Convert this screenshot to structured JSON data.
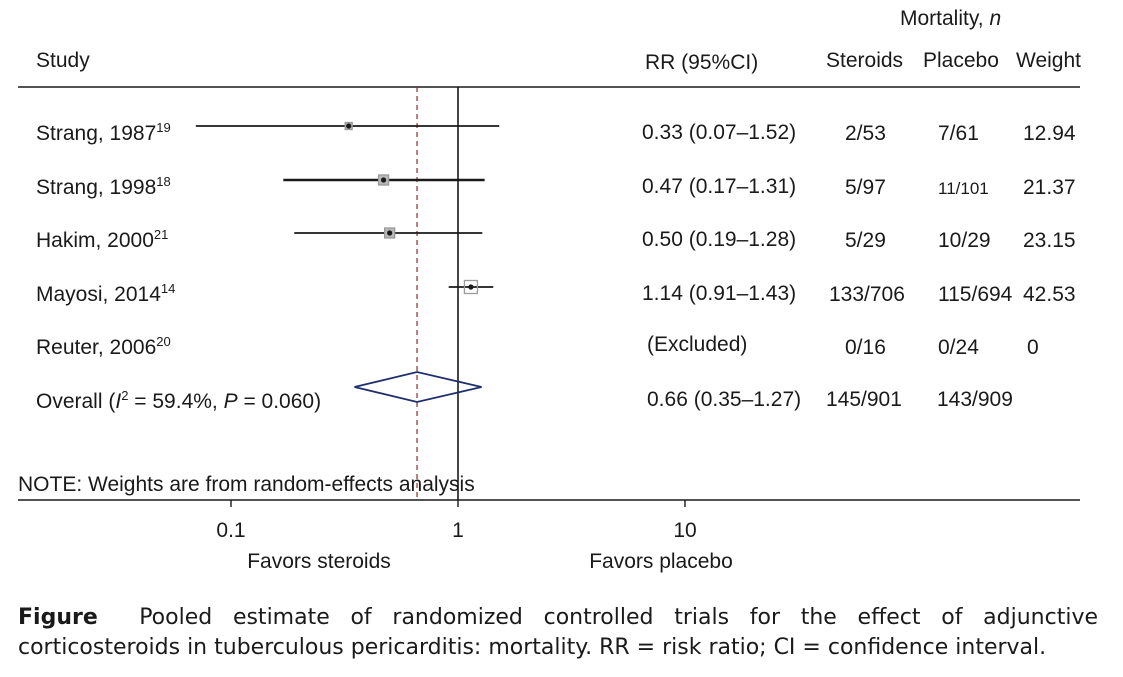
{
  "header": {
    "mortality_label": "Mortality, ",
    "mortality_n": "n",
    "study": "Study",
    "rr": "RR (95%CI)",
    "steroids": "Steroids",
    "placebo": "Placebo",
    "weight": "Weight"
  },
  "note": "NOTE: Weights are from random-effects analysis",
  "caption": {
    "label": "Figure",
    "text": "Pooled estimate of randomized controlled trials for the effect of adjunctive corticosteroids in tuberculous pericarditis: mortality. RR = risk ratio; CI = confidence interval."
  },
  "colors": {
    "line": "#1a1a1a",
    "null_line": "#8b2b2b",
    "diamond": "#1f2f6b",
    "box": "#b8b8b8"
  },
  "chart_data": {
    "type": "forest",
    "scale": "log",
    "xlim": [
      0.03,
      100
    ],
    "xticks": [
      {
        "value": 0.1,
        "label": "0.1"
      },
      {
        "value": 1,
        "label": "1"
      },
      {
        "value": 10,
        "label": "10"
      }
    ],
    "null_value": 1,
    "pooled_reference_line": 0.66,
    "favors_left": "Favors steroids",
    "favors_right": "Favors placebo",
    "studies": [
      {
        "name": "Strang, 1987",
        "ref": "19",
        "rr": 0.33,
        "lo": 0.07,
        "hi": 1.52,
        "rr_text": "0.33 (0.07–1.52)",
        "steroids": "2/53",
        "placebo": "7/61",
        "weight": "12.94"
      },
      {
        "name": "Strang, 1998",
        "ref": "18",
        "rr": 0.47,
        "lo": 0.17,
        "hi": 1.31,
        "rr_text": "0.47 (0.17–1.31)",
        "steroids": "5/97",
        "placebo": "11/101",
        "weight": "21.37"
      },
      {
        "name": "Hakim, 2000",
        "ref": "21",
        "rr": 0.5,
        "lo": 0.19,
        "hi": 1.28,
        "rr_text": "0.50 (0.19–1.28)",
        "steroids": "5/29",
        "placebo": "10/29",
        "weight": "23.15"
      },
      {
        "name": "Mayosi, 2014",
        "ref": "14",
        "rr": 1.14,
        "lo": 0.91,
        "hi": 1.43,
        "rr_text": "1.14 (0.91–1.43)",
        "steroids": "133/706",
        "placebo": "115/694",
        "weight": "42.53"
      },
      {
        "name": "Reuter, 2006",
        "ref": "20",
        "rr": null,
        "lo": null,
        "hi": null,
        "rr_text": "(Excluded)",
        "steroids": "0/16",
        "placebo": "0/24",
        "weight": "0"
      }
    ],
    "overall": {
      "label_prefix": "Overall (",
      "i2_symbol": "I",
      "i2_sup": "2",
      "i2_text": " = 59.4%, ",
      "p_symbol": "P",
      "p_text": " = 0.060)",
      "rr": 0.66,
      "lo": 0.35,
      "hi": 1.27,
      "rr_text": "0.66 (0.35–1.27)",
      "steroids": "145/901",
      "placebo": "143/909"
    }
  }
}
